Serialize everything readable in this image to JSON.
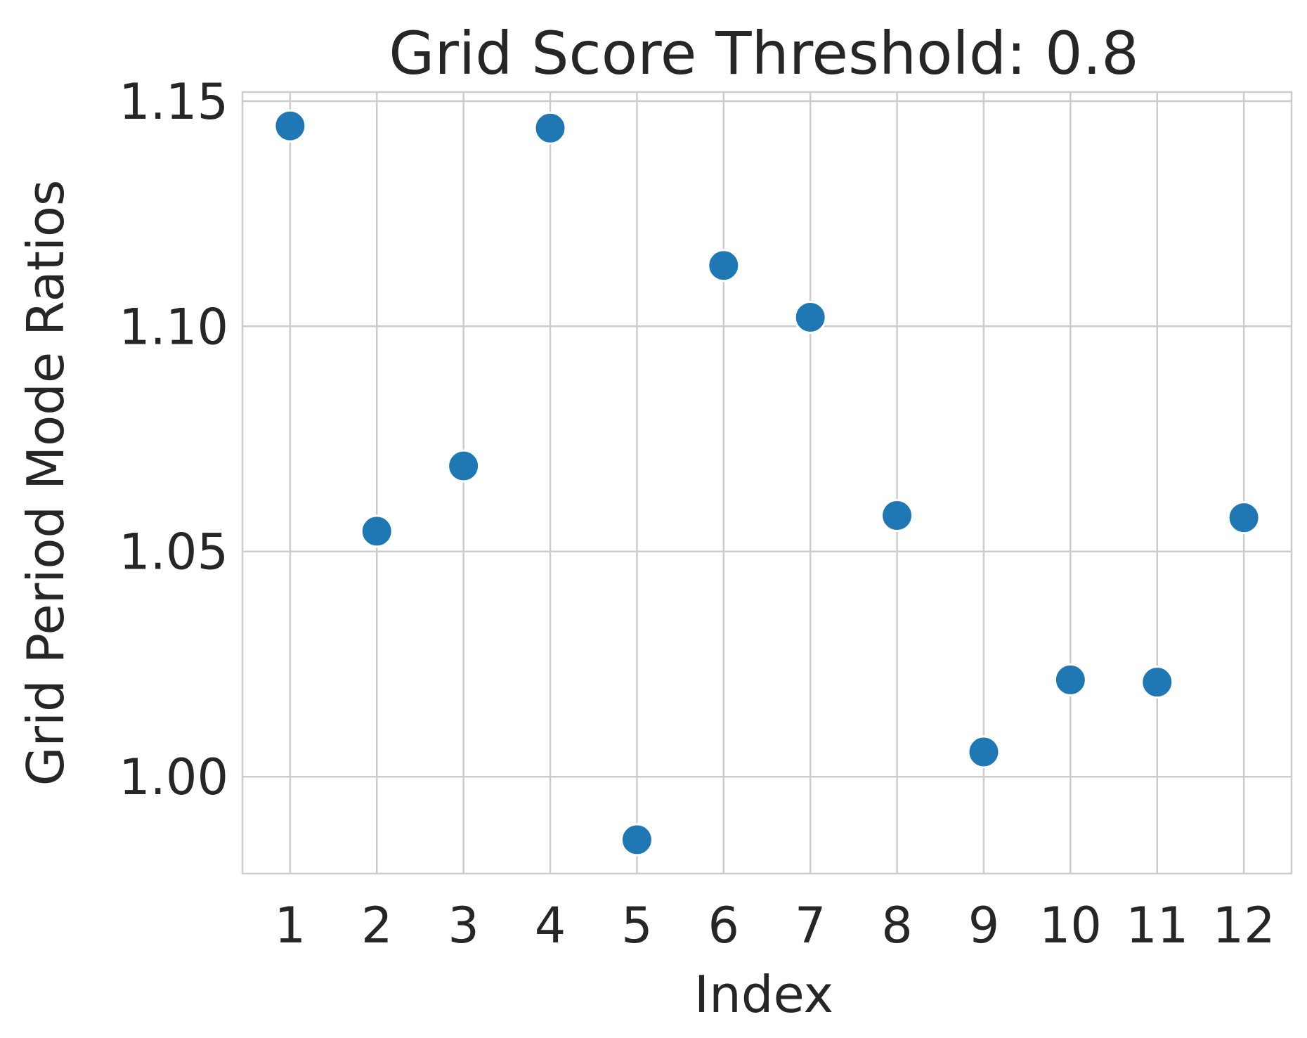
{
  "chart_data": {
    "type": "scatter",
    "title": "Grid Score Threshold: 0.8",
    "xlabel": "Index",
    "ylabel": "Grid Period Mode Ratios",
    "x": [
      1,
      2,
      3,
      4,
      5,
      6,
      7,
      8,
      9,
      10,
      11,
      12
    ],
    "y": [
      1.1445,
      1.0545,
      1.069,
      1.144,
      0.986,
      1.1135,
      1.102,
      1.058,
      1.0055,
      1.0215,
      1.021,
      1.0575
    ],
    "x_ticks": [
      "1",
      "2",
      "3",
      "4",
      "5",
      "6",
      "7",
      "8",
      "9",
      "10",
      "11",
      "12"
    ],
    "y_ticks": [
      "1.00",
      "1.05",
      "1.10",
      "1.15"
    ],
    "xlim": [
      0.45,
      12.55
    ],
    "ylim": [
      0.9785,
      1.152
    ],
    "grid": true,
    "legend": "none",
    "marker_color": "#1f77b4",
    "grid_color": "#cccccc",
    "text_color": "#262626"
  }
}
